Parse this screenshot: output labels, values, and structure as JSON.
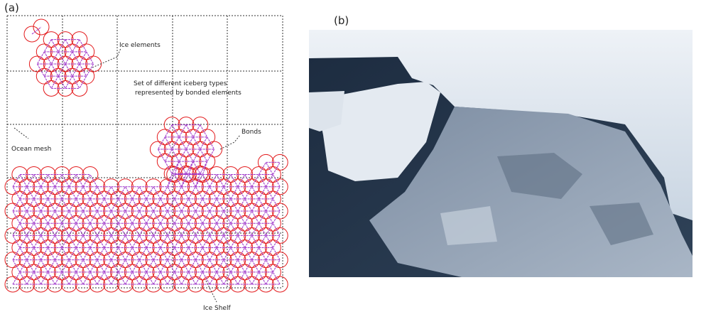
{
  "panels": {
    "a": {
      "label": "(a)"
    },
    "b": {
      "label": "(b)"
    }
  },
  "annotations": {
    "ice_elements": "Ice elements",
    "iceberg_types": "Set of different iceberg types",
    "iceberg_types_2": "represented by bonded elements",
    "bonds": "Bonds",
    "ocean_mesh": "Ocean mesh",
    "ice_shelf": "Ice Shelf"
  }
}
